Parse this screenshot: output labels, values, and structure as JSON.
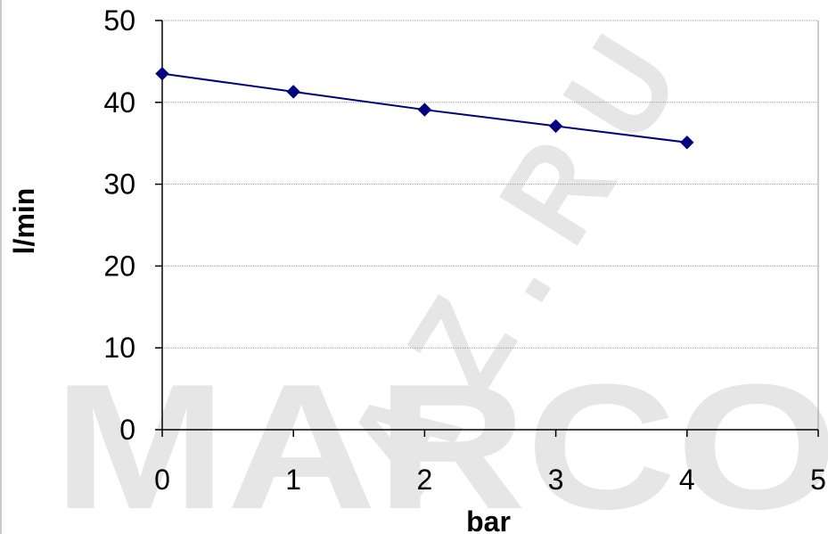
{
  "chart_data": {
    "type": "line",
    "xlabel": "bar",
    "ylabel": "l/min",
    "xlim": [
      0,
      5
    ],
    "ylim": [
      0,
      50
    ],
    "x_ticks": [
      0,
      1,
      2,
      3,
      4,
      5
    ],
    "y_ticks": [
      0,
      10,
      20,
      30,
      40,
      50
    ],
    "grid": "horizontal dotted",
    "series": [
      {
        "x": [
          0,
          1,
          2,
          3,
          4
        ],
        "y": [
          43.5,
          41.3,
          39.1,
          37.1,
          35.1
        ],
        "color": "#000080",
        "marker": "diamond"
      }
    ]
  },
  "watermark": {
    "text": "MARCO",
    "text_2": "A Z . R U",
    "color": "#e6e6e6"
  }
}
